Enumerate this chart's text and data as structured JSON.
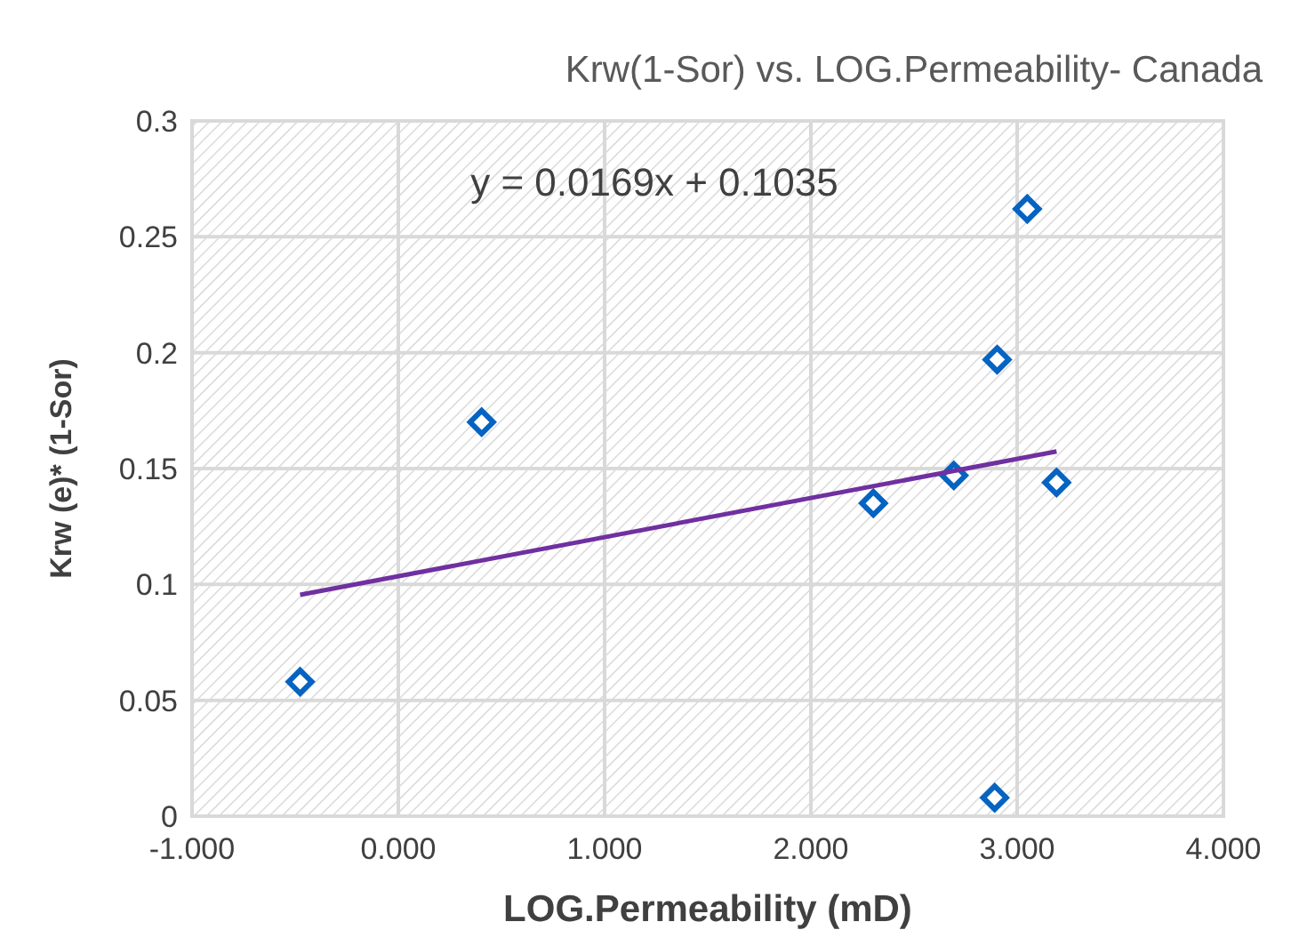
{
  "chart_data": {
    "type": "scatter",
    "title": "Krw(1-Sor) vs.  LOG.Permeability- Canada",
    "xlabel": "LOG.Permeability (mD)",
    "ylabel": "Krw (e)* (1-Sor)",
    "annotations": [
      "y = 0.0169x + 0.1035"
    ],
    "series": [
      {
        "color": "#0563c1",
        "marker": "diamond",
        "x": [
          -0.476,
          0.404,
          2.303,
          2.693,
          2.903,
          2.891,
          3.049,
          3.191
        ],
        "values": [
          0.058,
          0.17,
          0.135,
          0.147,
          0.197,
          0.008,
          0.262,
          0.144
        ]
      },
      {
        "type": "line",
        "color": "#7030a0",
        "marker": "none",
        "x": [
          -0.476,
          3.191
        ],
        "values": [
          0.0955,
          0.1574
        ]
      }
    ],
    "xlim": [
      -1,
      4
    ],
    "xticks": [
      {
        "value": -1,
        "label": "-1.000"
      },
      {
        "value": 0,
        "label": "0.000"
      },
      {
        "value": 1,
        "label": "1.000"
      },
      {
        "value": 2,
        "label": "2.000"
      },
      {
        "value": 3,
        "label": "3.000"
      },
      {
        "value": 4,
        "label": "4.000"
      }
    ],
    "ylim": [
      0,
      0.3
    ],
    "yticks": [
      0,
      0.05,
      0.1,
      0.15,
      0.2,
      0.25,
      0.3
    ],
    "grid": true
  }
}
